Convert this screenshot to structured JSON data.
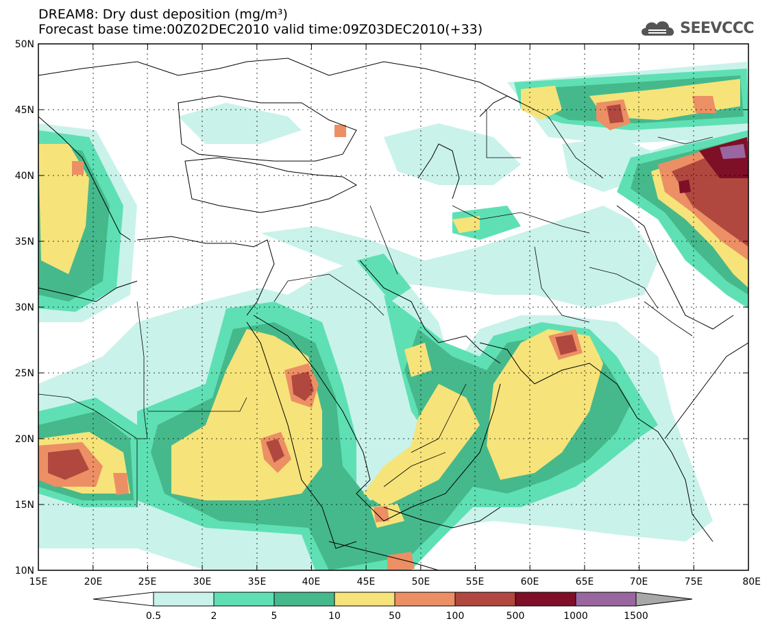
{
  "title_line1": "DREAM8: Dry dust deposition (mg/m³)",
  "title_line2": "Forecast base time:00Z02DEC2010 valid time:09Z03DEC2010(+33)",
  "logo_text": "SEEVCCC",
  "axes": {
    "lon_ticks": [
      "15E",
      "20E",
      "25E",
      "30E",
      "35E",
      "40E",
      "45E",
      "50E",
      "55E",
      "60E",
      "65E",
      "70E",
      "75E",
      "80E"
    ],
    "lat_ticks": [
      "50N",
      "45N",
      "40N",
      "35N",
      "30N",
      "25N",
      "20N",
      "15N",
      "10N"
    ]
  },
  "colorbar": {
    "labels": [
      "0.5",
      "2",
      "5",
      "10",
      "50",
      "100",
      "500",
      "1000",
      "1500"
    ],
    "colors": [
      "#c9f2ea",
      "#5fe0b4",
      "#45b98b",
      "#f6e37a",
      "#ec8f64",
      "#b0483f",
      "#7e0f27",
      "#9a66a0"
    ],
    "under_color": "#ffffff",
    "over_color": "#a8a8a8"
  }
}
